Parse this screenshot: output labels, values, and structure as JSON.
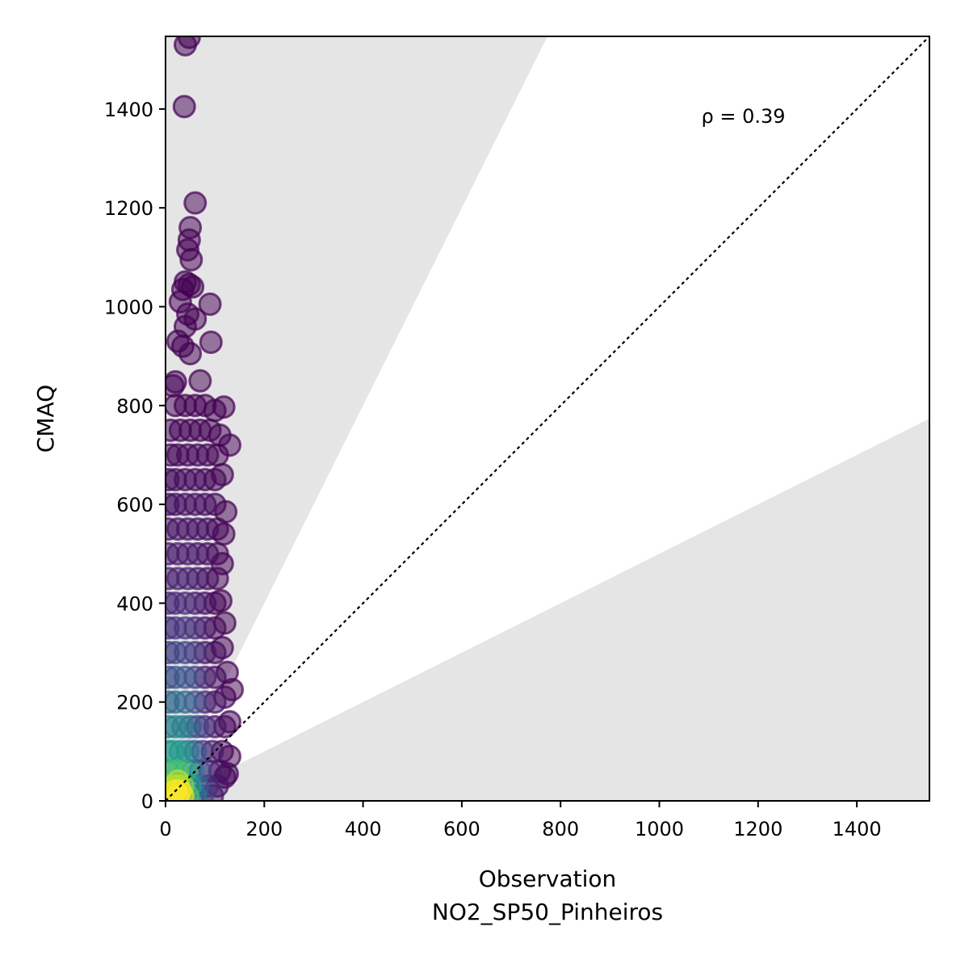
{
  "chart_data": {
    "type": "scatter",
    "title": "",
    "xlabel": "Observation",
    "xlabel2": "NO2_SP50_Pinheiros",
    "ylabel": "CMAQ",
    "xlim": [
      0,
      1547
    ],
    "ylim": [
      0,
      1547
    ],
    "xticks": [
      0,
      200,
      400,
      600,
      800,
      1000,
      1200,
      1400
    ],
    "yticks": [
      0,
      200,
      400,
      600,
      800,
      1000,
      1200,
      1400
    ],
    "annotation": "ρ = 0.39",
    "annotation_pos": [
      1085,
      1385
    ],
    "identity_line": {
      "slope": 1,
      "style": "dotted"
    },
    "shaded_bands": [
      {
        "slope_from": 2,
        "to": "y-axis"
      },
      {
        "slope_from": 0.5,
        "to": "x-axis"
      }
    ],
    "shade_color": "#e5e5e5",
    "colormap": "viridis",
    "point_alpha": 0.5,
    "points": [
      [
        40,
        1530,
        0
      ],
      [
        48,
        1545,
        0
      ],
      [
        38,
        1405,
        0
      ],
      [
        60,
        1210,
        0
      ],
      [
        50,
        1160,
        0
      ],
      [
        48,
        1135,
        0
      ],
      [
        45,
        1115,
        0
      ],
      [
        52,
        1095,
        0
      ],
      [
        40,
        1050,
        0
      ],
      [
        48,
        1045,
        0
      ],
      [
        55,
        1040,
        0
      ],
      [
        35,
        1035,
        0
      ],
      [
        30,
        1010,
        0
      ],
      [
        90,
        1005,
        0
      ],
      [
        45,
        985,
        0
      ],
      [
        60,
        975,
        0
      ],
      [
        40,
        960,
        0
      ],
      [
        92,
        928,
        0
      ],
      [
        25,
        930,
        0
      ],
      [
        35,
        920,
        0
      ],
      [
        50,
        905,
        0
      ],
      [
        15,
        840,
        0
      ],
      [
        20,
        848,
        0
      ],
      [
        70,
        850,
        0
      ],
      [
        20,
        800,
        0
      ],
      [
        40,
        800,
        0
      ],
      [
        60,
        800,
        0
      ],
      [
        80,
        800,
        0
      ],
      [
        100,
        790,
        0
      ],
      [
        118,
        797,
        0
      ],
      [
        10,
        750,
        0.01
      ],
      [
        30,
        750,
        0.01
      ],
      [
        50,
        750,
        0.01
      ],
      [
        70,
        750,
        0.01
      ],
      [
        90,
        750,
        0
      ],
      [
        110,
        740,
        0
      ],
      [
        10,
        700,
        0.02
      ],
      [
        25,
        700,
        0.02
      ],
      [
        45,
        700,
        0.02
      ],
      [
        65,
        700,
        0.02
      ],
      [
        85,
        700,
        0.01
      ],
      [
        105,
        700,
        0
      ],
      [
        130,
        720,
        0
      ],
      [
        5,
        650,
        0.03
      ],
      [
        20,
        650,
        0.03
      ],
      [
        40,
        650,
        0.03
      ],
      [
        60,
        650,
        0.03
      ],
      [
        80,
        650,
        0.02
      ],
      [
        100,
        650,
        0.01
      ],
      [
        115,
        660,
        0
      ],
      [
        5,
        600,
        0.04
      ],
      [
        20,
        600,
        0.04
      ],
      [
        40,
        600,
        0.04
      ],
      [
        60,
        600,
        0.04
      ],
      [
        80,
        600,
        0.03
      ],
      [
        100,
        600,
        0.01
      ],
      [
        122,
        585,
        0
      ],
      [
        5,
        550,
        0.05
      ],
      [
        25,
        550,
        0.05
      ],
      [
        45,
        550,
        0.05
      ],
      [
        65,
        550,
        0.04
      ],
      [
        85,
        550,
        0.03
      ],
      [
        105,
        550,
        0.01
      ],
      [
        118,
        540,
        0
      ],
      [
        5,
        500,
        0.06
      ],
      [
        25,
        500,
        0.07
      ],
      [
        45,
        500,
        0.07
      ],
      [
        65,
        500,
        0.05
      ],
      [
        85,
        500,
        0.03
      ],
      [
        105,
        500,
        0.01
      ],
      [
        115,
        480,
        0
      ],
      [
        5,
        450,
        0.08
      ],
      [
        25,
        450,
        0.09
      ],
      [
        45,
        450,
        0.09
      ],
      [
        65,
        450,
        0.06
      ],
      [
        85,
        450,
        0.03
      ],
      [
        105,
        450,
        0.01
      ],
      [
        5,
        400,
        0.1
      ],
      [
        20,
        400,
        0.12
      ],
      [
        40,
        400,
        0.12
      ],
      [
        60,
        400,
        0.08
      ],
      [
        80,
        400,
        0.04
      ],
      [
        100,
        400,
        0.01
      ],
      [
        112,
        405,
        0
      ],
      [
        5,
        350,
        0.13
      ],
      [
        20,
        350,
        0.15
      ],
      [
        40,
        350,
        0.15
      ],
      [
        60,
        350,
        0.1
      ],
      [
        80,
        350,
        0.05
      ],
      [
        100,
        350,
        0.02
      ],
      [
        120,
        360,
        0
      ],
      [
        5,
        300,
        0.17
      ],
      [
        20,
        300,
        0.2
      ],
      [
        40,
        300,
        0.2
      ],
      [
        60,
        300,
        0.13
      ],
      [
        80,
        300,
        0.06
      ],
      [
        100,
        300,
        0.02
      ],
      [
        115,
        310,
        0
      ],
      [
        5,
        250,
        0.22
      ],
      [
        20,
        250,
        0.26
      ],
      [
        40,
        250,
        0.26
      ],
      [
        60,
        250,
        0.17
      ],
      [
        80,
        250,
        0.08
      ],
      [
        100,
        250,
        0.03
      ],
      [
        125,
        260,
        0
      ],
      [
        5,
        200,
        0.3
      ],
      [
        20,
        200,
        0.35
      ],
      [
        40,
        200,
        0.33
      ],
      [
        60,
        200,
        0.22
      ],
      [
        80,
        200,
        0.1
      ],
      [
        100,
        200,
        0.04
      ],
      [
        120,
        210,
        0.01
      ],
      [
        135,
        225,
        0
      ],
      [
        5,
        150,
        0.4
      ],
      [
        20,
        150,
        0.45
      ],
      [
        35,
        150,
        0.42
      ],
      [
        50,
        150,
        0.3
      ],
      [
        65,
        150,
        0.2
      ],
      [
        80,
        150,
        0.12
      ],
      [
        100,
        150,
        0.05
      ],
      [
        120,
        150,
        0.02
      ],
      [
        130,
        160,
        0
      ],
      [
        5,
        100,
        0.5
      ],
      [
        15,
        100,
        0.55
      ],
      [
        30,
        100,
        0.52
      ],
      [
        45,
        100,
        0.42
      ],
      [
        60,
        100,
        0.28
      ],
      [
        75,
        100,
        0.15
      ],
      [
        95,
        100,
        0.07
      ],
      [
        115,
        100,
        0.02
      ],
      [
        130,
        90,
        0
      ],
      [
        5,
        60,
        0.6
      ],
      [
        15,
        60,
        0.68
      ],
      [
        25,
        60,
        0.7
      ],
      [
        40,
        60,
        0.62
      ],
      [
        55,
        60,
        0.4
      ],
      [
        70,
        60,
        0.22
      ],
      [
        90,
        60,
        0.08
      ],
      [
        110,
        60,
        0.03
      ],
      [
        125,
        55,
        0
      ],
      [
        5,
        30,
        0.75
      ],
      [
        15,
        30,
        0.85
      ],
      [
        25,
        30,
        0.88
      ],
      [
        35,
        30,
        0.8
      ],
      [
        50,
        30,
        0.55
      ],
      [
        65,
        30,
        0.3
      ],
      [
        85,
        30,
        0.12
      ],
      [
        105,
        30,
        0.04
      ],
      [
        120,
        48,
        0.01
      ],
      [
        5,
        10,
        0.85
      ],
      [
        15,
        10,
        0.95
      ],
      [
        25,
        10,
        1.0
      ],
      [
        35,
        10,
        0.95
      ],
      [
        45,
        10,
        0.7
      ],
      [
        60,
        10,
        0.4
      ],
      [
        75,
        10,
        0.2
      ],
      [
        95,
        10,
        0.06
      ],
      [
        20,
        20,
        1.0
      ],
      [
        30,
        20,
        0.98
      ],
      [
        25,
        40,
        0.9
      ]
    ]
  }
}
